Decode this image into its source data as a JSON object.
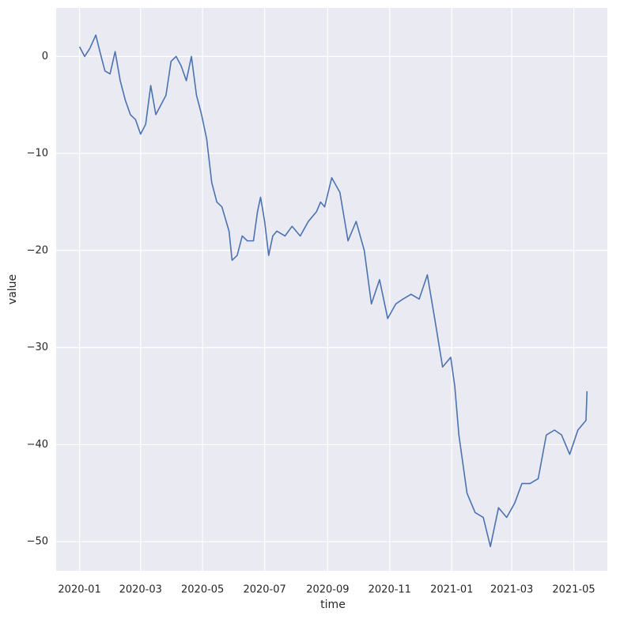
{
  "chart_data": {
    "type": "line",
    "xlabel": "time",
    "ylabel": "value",
    "x": [
      "2020-01-01",
      "2020-01-06",
      "2020-01-11",
      "2020-01-17",
      "2020-01-21",
      "2020-01-26",
      "2020-01-31",
      "2020-02-05",
      "2020-02-10",
      "2020-02-15",
      "2020-02-20",
      "2020-02-25",
      "2020-03-01",
      "2020-03-06",
      "2020-03-11",
      "2020-03-16",
      "2020-03-21",
      "2020-03-26",
      "2020-03-31",
      "2020-04-05",
      "2020-04-10",
      "2020-04-15",
      "2020-04-20",
      "2020-04-25",
      "2020-04-30",
      "2020-05-05",
      "2020-05-10",
      "2020-05-15",
      "2020-05-20",
      "2020-05-27",
      "2020-05-30",
      "2020-06-04",
      "2020-06-09",
      "2020-06-14",
      "2020-06-20",
      "2020-06-24",
      "2020-06-27",
      "2020-07-01",
      "2020-07-05",
      "2020-07-09",
      "2020-07-13",
      "2020-07-21",
      "2020-07-28",
      "2020-08-05",
      "2020-08-13",
      "2020-08-21",
      "2020-08-25",
      "2020-08-29",
      "2020-09-05",
      "2020-09-13",
      "2020-09-21",
      "2020-09-29",
      "2020-10-07",
      "2020-10-14",
      "2020-10-22",
      "2020-10-30",
      "2020-11-07",
      "2020-11-14",
      "2020-11-22",
      "2020-11-30",
      "2020-12-08",
      "2020-12-16",
      "2020-12-23",
      "2020-12-31",
      "2021-01-04",
      "2021-01-08",
      "2021-01-16",
      "2021-01-24",
      "2021-02-01",
      "2021-02-08",
      "2021-02-16",
      "2021-02-24",
      "2021-03-04",
      "2021-03-11",
      "2021-03-19",
      "2021-03-27",
      "2021-04-04",
      "2021-04-12",
      "2021-04-19",
      "2021-04-27",
      "2021-05-05",
      "2021-05-13",
      "2021-05-14"
    ],
    "series": [
      {
        "color": "#4c72b0",
        "values": [
          1,
          0,
          0.8,
          2.2,
          0.5,
          -1.5,
          -1.8,
          0.5,
          -2.5,
          -4.5,
          -6,
          -6.5,
          -8,
          -7,
          -3,
          -6,
          -5,
          -4,
          -0.5,
          0,
          -1,
          -2.5,
          0,
          -4,
          -6,
          -8.5,
          -13,
          -15,
          -15.5,
          -18,
          -21,
          -20.5,
          -18.5,
          -19,
          -19,
          -16,
          -14.5,
          -17,
          -20.5,
          -18.5,
          -18,
          -18.5,
          -17.5,
          -18.5,
          -17,
          -16,
          -15,
          -15.5,
          -12.5,
          -14,
          -19,
          -17,
          -20,
          -25.5,
          -23,
          -27,
          -25.5,
          -25,
          -24.5,
          -25,
          -22.5,
          -27.5,
          -32,
          -31,
          -34,
          -39,
          -45,
          -47,
          -47.5,
          -50.5,
          -46.5,
          -47.5,
          -46,
          -44,
          -44,
          -43.5,
          -39,
          -38.5,
          -39,
          -41,
          -38.5,
          -37.5,
          -34.5
        ]
      }
    ],
    "xlim": [
      "2019-12-09",
      "2021-06-03"
    ],
    "xticks": [
      "2020-01",
      "2020-03",
      "2020-05",
      "2020-07",
      "2020-09",
      "2020-11",
      "2021-01",
      "2021-03",
      "2021-05"
    ],
    "ylim": [
      -53,
      5
    ],
    "yticks": [
      {
        "value": -50,
        "label": "−50"
      },
      {
        "value": -40,
        "label": "−40"
      },
      {
        "value": -30,
        "label": "−30"
      },
      {
        "value": -20,
        "label": "−20"
      },
      {
        "value": -10,
        "label": "−10"
      },
      0
    ],
    "grid": true
  }
}
